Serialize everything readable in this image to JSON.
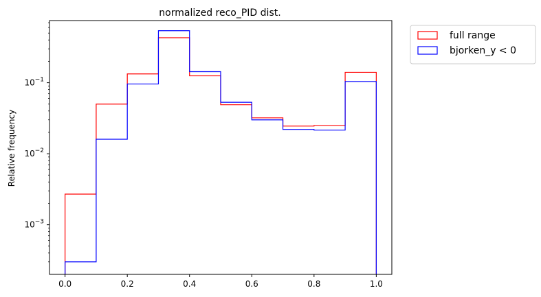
{
  "chart_data": {
    "type": "histogram",
    "title": "normalized reco_PID dist.",
    "xlabel": "",
    "ylabel": "Relative frequency",
    "yscale": "log",
    "xlim": [
      -0.05,
      1.05
    ],
    "ylim": [
      0.0002,
      0.75
    ],
    "grid": false,
    "legend_placement": "outside-top-right",
    "bin_edges": [
      0.0,
      0.1,
      0.2,
      0.3,
      0.4,
      0.5,
      0.6,
      0.7,
      0.8,
      0.9,
      1.0
    ],
    "x_ticks": [
      "0.0",
      "0.2",
      "0.4",
      "0.6",
      "0.8",
      "1.0"
    ],
    "x_tick_values": [
      0.0,
      0.2,
      0.4,
      0.6,
      0.8,
      1.0
    ],
    "y_major_ticks": [
      0.001,
      0.01,
      0.1
    ],
    "y_tick_labels": [
      {
        "base": "10",
        "exp": "−3"
      },
      {
        "base": "10",
        "exp": "−2"
      },
      {
        "base": "10",
        "exp": "−1"
      }
    ],
    "series": [
      {
        "name": "full range",
        "color": "#ff0000",
        "values": [
          0.0027,
          0.05,
          0.133,
          0.43,
          0.125,
          0.049,
          0.032,
          0.0245,
          0.025,
          0.14
        ]
      },
      {
        "name": "bjorken_y < 0",
        "color": "#0000ff",
        "values": [
          0.0003,
          0.016,
          0.096,
          0.54,
          0.143,
          0.053,
          0.03,
          0.022,
          0.0215,
          0.104
        ]
      }
    ]
  }
}
